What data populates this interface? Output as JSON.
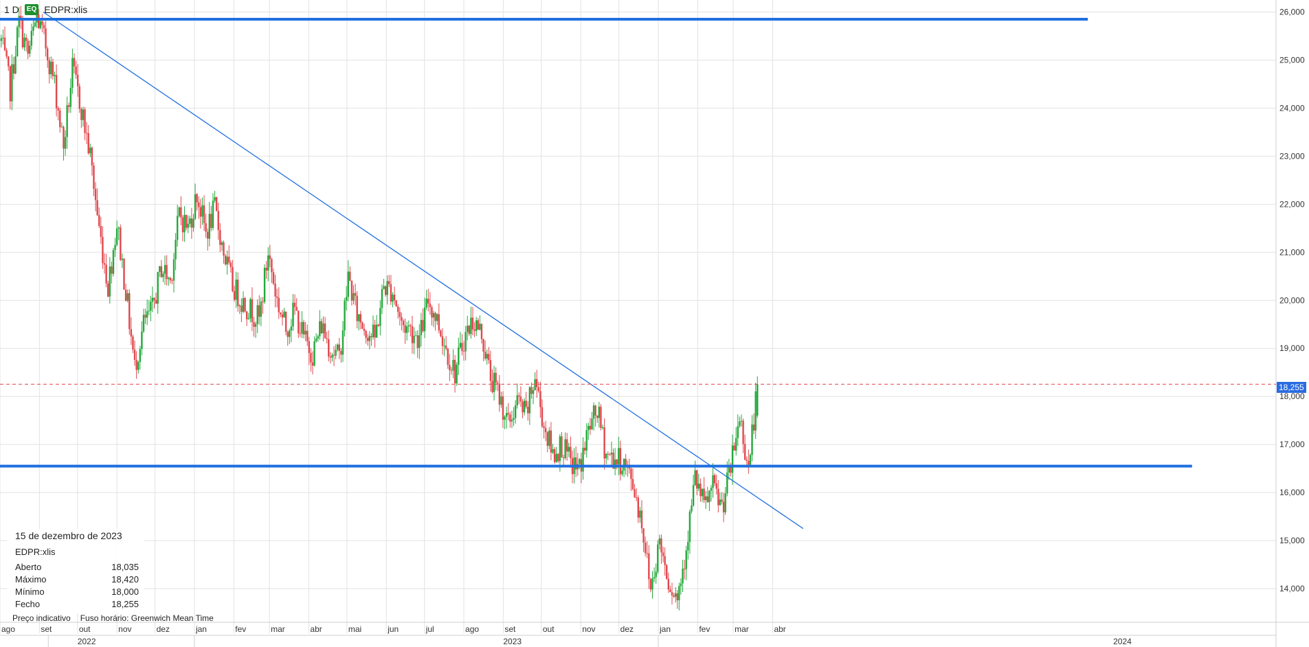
{
  "header": {
    "interval": "1 D",
    "badge": "EQ",
    "symbol": "EDPR:xlis"
  },
  "info": {
    "date": "15 de dezembro de 2023",
    "symbol": "EDPR:xlis",
    "rows": [
      {
        "label": "Aberto",
        "value": "18,035"
      },
      {
        "label": "Máximo",
        "value": "18,420"
      },
      {
        "label": "Mínimo",
        "value": "18,000"
      },
      {
        "label": "Fecho",
        "value": "18,255"
      }
    ]
  },
  "footer": {
    "indicative": "Preço indicativo",
    "timezone": "Fuso horário: Greenwich Mean Time"
  },
  "last_price_label": "18,255",
  "colors": {
    "up": "#22a83a",
    "down": "#e0474c",
    "line": "#1f6fe0",
    "grid": "#e2e2e2",
    "last": "#e0474c"
  },
  "chart_data": {
    "type": "candlestick",
    "ylim": [
      13.3,
      26.25
    ],
    "xlim": [
      "2021-08-01",
      "2024-04-30"
    ],
    "y_ticks": [
      "14,000",
      "15,000",
      "16,000",
      "17,000",
      "18,000",
      "19,000",
      "20,000",
      "21,000",
      "22,000",
      "23,000",
      "24,000",
      "25,000",
      "26,000"
    ],
    "x_ticks": [
      {
        "label": "ago",
        "date": "2021-08-01"
      },
      {
        "label": "set",
        "date": "2021-09-01"
      },
      {
        "label": "out",
        "date": "2021-10-01"
      },
      {
        "label": "nov",
        "date": "2021-11-01"
      },
      {
        "label": "dez",
        "date": "2021-12-01"
      },
      {
        "label": "jan",
        "date": "2022-01-01"
      },
      {
        "label": "fev",
        "date": "2022-02-01"
      },
      {
        "label": "mar",
        "date": "2022-03-01"
      },
      {
        "label": "abr",
        "date": "2022-04-01"
      },
      {
        "label": "mai",
        "date": "2022-05-01"
      },
      {
        "label": "jun",
        "date": "2022-06-01"
      },
      {
        "label": "jul",
        "date": "2022-07-01"
      },
      {
        "label": "ago",
        "date": "2022-08-01"
      },
      {
        "label": "set",
        "date": "2022-09-01"
      },
      {
        "label": "out",
        "date": "2022-10-01"
      },
      {
        "label": "nov",
        "date": "2022-11-01"
      },
      {
        "label": "dez",
        "date": "2022-12-01"
      },
      {
        "label": "jan",
        "date": "2023-01-01"
      },
      {
        "label": "fev",
        "date": "2023-02-01"
      },
      {
        "label": "mar",
        "date": "2023-03-01"
      },
      {
        "label": "abr",
        "date": "2023-04-01"
      }
    ],
    "year_labels": [
      {
        "label": "2022",
        "date": "2021-10-01"
      },
      {
        "label": "2023",
        "date": "2022-09-01"
      },
      {
        "label": "2024",
        "date": "2023-12-25"
      }
    ],
    "year_dividers": [
      "2021-09-08",
      "2022-01-01",
      "2023-01-01"
    ],
    "series": [
      {
        "kind": "close_path",
        "points": [
          [
            "2021-08-02",
            25.4
          ],
          [
            "2021-08-09",
            24.4
          ],
          [
            "2021-08-16",
            25.8
          ],
          [
            "2021-08-23",
            25.1
          ],
          [
            "2021-08-30",
            25.9
          ],
          [
            "2021-09-06",
            25.3
          ],
          [
            "2021-09-13",
            24.5
          ],
          [
            "2021-09-20",
            23.2
          ],
          [
            "2021-09-27",
            24.8
          ],
          [
            "2021-10-04",
            24.0
          ],
          [
            "2021-10-11",
            23.0
          ],
          [
            "2021-10-18",
            21.5
          ],
          [
            "2021-10-25",
            20.3
          ],
          [
            "2021-11-01",
            21.6
          ],
          [
            "2021-11-08",
            20.2
          ],
          [
            "2021-11-15",
            18.6
          ],
          [
            "2021-11-22",
            19.5
          ],
          [
            "2021-11-29",
            19.8
          ],
          [
            "2021-12-06",
            20.7
          ],
          [
            "2021-12-13",
            20.4
          ],
          [
            "2021-12-20",
            21.8
          ],
          [
            "2021-12-27",
            21.5
          ],
          [
            "2022-01-03",
            22.2
          ],
          [
            "2022-01-10",
            21.4
          ],
          [
            "2022-01-17",
            21.9
          ],
          [
            "2022-01-24",
            21.0
          ],
          [
            "2022-01-31",
            20.3
          ],
          [
            "2022-02-07",
            20.0
          ],
          [
            "2022-02-14",
            19.8
          ],
          [
            "2022-02-21",
            19.6
          ],
          [
            "2022-02-28",
            21.0
          ],
          [
            "2022-03-07",
            20.0
          ],
          [
            "2022-03-14",
            19.4
          ],
          [
            "2022-03-21",
            19.8
          ],
          [
            "2022-03-28",
            19.2
          ],
          [
            "2022-04-04",
            18.9
          ],
          [
            "2022-04-11",
            19.5
          ],
          [
            "2022-04-18",
            19.0
          ],
          [
            "2022-04-25",
            18.8
          ],
          [
            "2022-05-02",
            20.5
          ],
          [
            "2022-05-09",
            19.7
          ],
          [
            "2022-05-16",
            19.4
          ],
          [
            "2022-05-23",
            19.2
          ],
          [
            "2022-05-30",
            20.3
          ],
          [
            "2022-06-06",
            20.2
          ],
          [
            "2022-06-13",
            19.5
          ],
          [
            "2022-06-20",
            19.4
          ],
          [
            "2022-06-27",
            19.2
          ],
          [
            "2022-07-04",
            20.0
          ],
          [
            "2022-07-11",
            19.6
          ],
          [
            "2022-07-18",
            19.0
          ],
          [
            "2022-07-25",
            18.5
          ],
          [
            "2022-08-01",
            19.2
          ],
          [
            "2022-08-08",
            19.6
          ],
          [
            "2022-08-15",
            19.3
          ],
          [
            "2022-08-22",
            18.4
          ],
          [
            "2022-08-29",
            18.0
          ],
          [
            "2022-09-05",
            17.4
          ],
          [
            "2022-09-12",
            17.9
          ],
          [
            "2022-09-19",
            17.6
          ],
          [
            "2022-09-26",
            18.4
          ],
          [
            "2022-10-03",
            17.4
          ],
          [
            "2022-10-10",
            16.8
          ],
          [
            "2022-10-17",
            17.0
          ],
          [
            "2022-10-24",
            16.6
          ],
          [
            "2022-10-31",
            16.5
          ],
          [
            "2022-11-07",
            17.3
          ],
          [
            "2022-11-14",
            17.7
          ],
          [
            "2022-11-21",
            16.8
          ],
          [
            "2022-11-28",
            16.7
          ],
          [
            "2022-12-05",
            16.6
          ],
          [
            "2022-12-12",
            16.2
          ],
          [
            "2022-12-19",
            15.4
          ],
          [
            "2022-12-26",
            14.0
          ],
          [
            "2023-01-02",
            15.0
          ],
          [
            "2023-01-09",
            14.2
          ],
          [
            "2023-01-16",
            13.8
          ],
          [
            "2023-01-23",
            14.9
          ],
          [
            "2023-01-30",
            16.3
          ],
          [
            "2023-02-06",
            15.7
          ],
          [
            "2023-02-13",
            16.1
          ],
          [
            "2023-02-20",
            15.7
          ],
          [
            "2023-02-27",
            16.5
          ],
          [
            "2023-03-06",
            17.6
          ],
          [
            "2023-03-13",
            16.5
          ],
          [
            "2023-03-20",
            18.255
          ]
        ]
      }
    ],
    "lines": [
      {
        "name": "resistance",
        "from": [
          "2021-08-01",
          25.85
        ],
        "to": [
          "2023-12-05",
          25.85
        ]
      },
      {
        "name": "support",
        "from": [
          "2021-08-01",
          16.55
        ],
        "to": [
          "2024-02-25",
          16.55
        ]
      },
      {
        "name": "trendline",
        "from": [
          "2021-09-04",
          26.0
        ],
        "to": [
          "2023-04-25",
          15.25
        ]
      }
    ],
    "last_price": 18.255
  }
}
